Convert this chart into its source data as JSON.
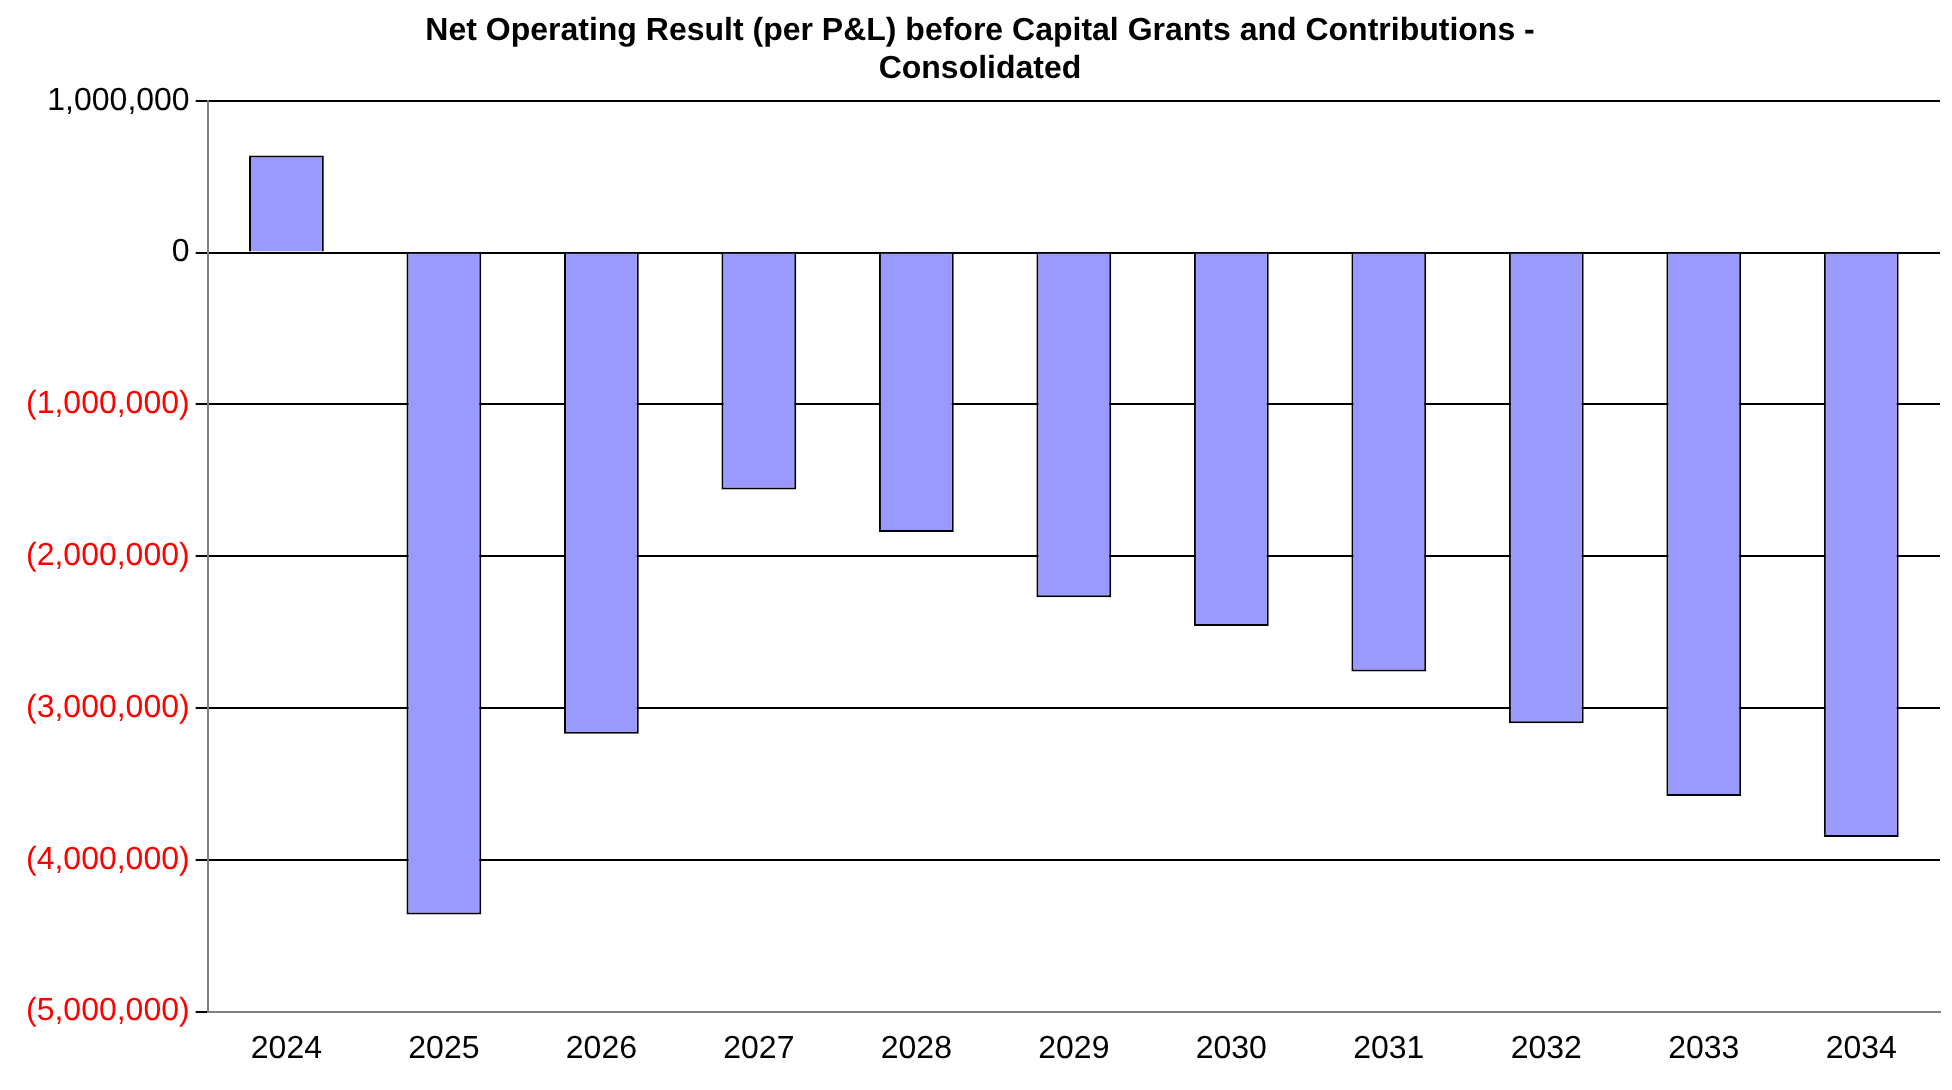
{
  "chart_data": {
    "type": "bar",
    "title": "Net Operating Result (per P&L) before Capital Grants and Contributions - Consolidated",
    "categories": [
      "2024",
      "2025",
      "2026",
      "2027",
      "2028",
      "2029",
      "2030",
      "2031",
      "2032",
      "2033",
      "2034"
    ],
    "values": [
      640000,
      -4360000,
      -3170000,
      -1560000,
      -1840000,
      -2270000,
      -2460000,
      -2760000,
      -3100000,
      -3580000,
      -3850000
    ],
    "color": "#9999ff",
    "ylim": [
      -5000000,
      1000000
    ],
    "yticks": [
      {
        "value": -5000000,
        "label": "(5,000,000)"
      },
      {
        "value": -4000000,
        "label": "(4,000,000)"
      },
      {
        "value": -3000000,
        "label": "(3,000,000)"
      },
      {
        "value": -2000000,
        "label": "(2,000,000)"
      },
      {
        "value": -1000000,
        "label": "(1,000,000)"
      },
      {
        "value": 0,
        "label": "0"
      },
      {
        "value": 1000000,
        "label": "1,000,000"
      }
    ],
    "grid": "y"
  }
}
